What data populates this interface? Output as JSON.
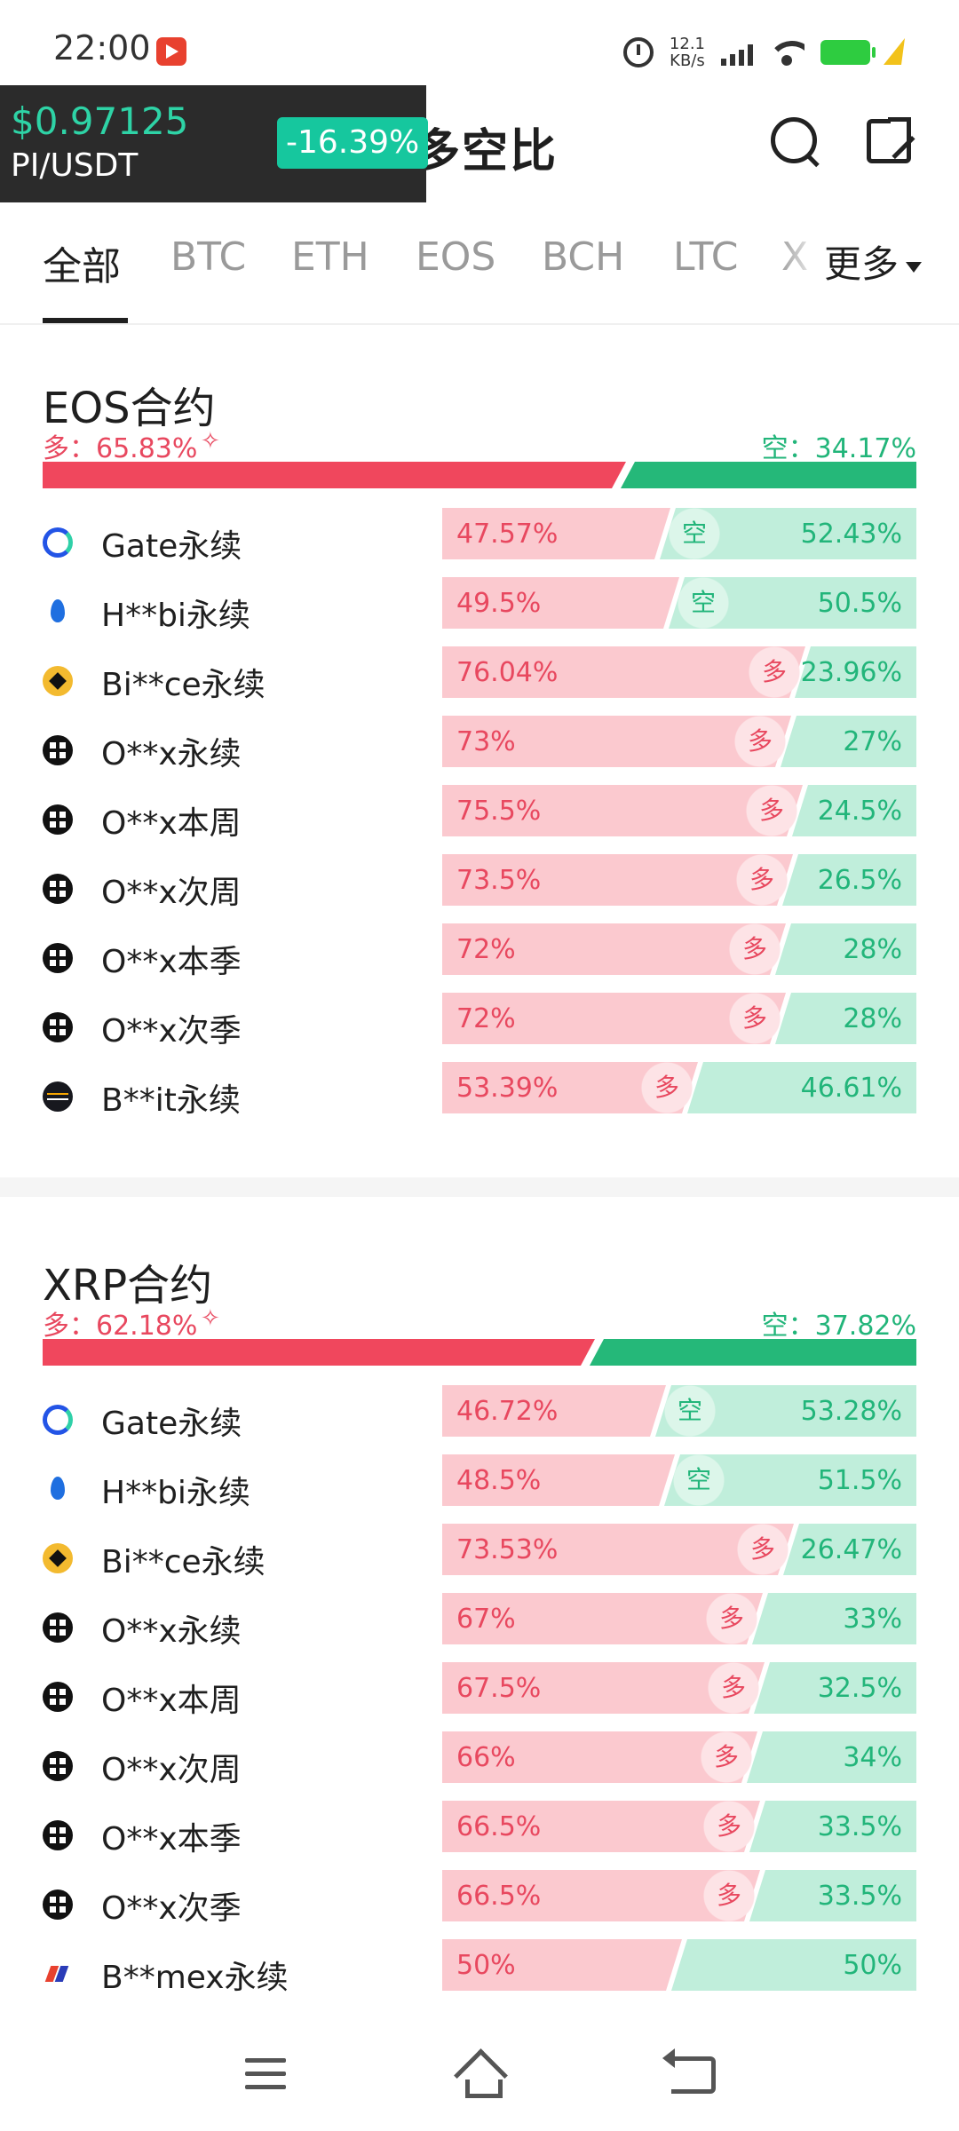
{
  "status_bar": {
    "time": "22:00",
    "net_speed_value": "12.1",
    "net_speed_unit": "KB/s"
  },
  "header": {
    "title": "多空比"
  },
  "ticker": {
    "price": "$0.97125",
    "pair": "PI/USDT",
    "change": "-16.39%"
  },
  "tabs": [
    "全部",
    "BTC",
    "ETH",
    "EOS",
    "BCH",
    "LTC"
  ],
  "tab_more_label": "更多",
  "tab_cut": "X",
  "icons": {
    "gate": "gate-icon",
    "huobi": "huobi-icon",
    "binance": "binance-icon",
    "okx": "okx-icon",
    "bybit": "bybit-icon",
    "bitmex": "bitmex-icon"
  },
  "colors": {
    "long": "#f0475d",
    "short": "#25b879",
    "long_light": "#fbc9cf",
    "short_light": "#c0eedb"
  },
  "sections": [
    {
      "title": "EOS合约",
      "long_label": "多：65.83%",
      "short_label": "空：34.17%",
      "long_pct": 65.83,
      "rows": [
        {
          "name": "Gate永续",
          "icon": "gate",
          "long": "47.57%",
          "short": "52.43%",
          "long_pct": 47.57,
          "tag": "空"
        },
        {
          "name": "H**bi永续",
          "icon": "huobi",
          "long": "49.5%",
          "short": "50.5%",
          "long_pct": 49.5,
          "tag": "空"
        },
        {
          "name": "Bi**ce永续",
          "icon": "binance",
          "long": "76.04%",
          "short": "23.96%",
          "long_pct": 76.04,
          "tag": "多"
        },
        {
          "name": "O**x永续",
          "icon": "okx",
          "long": "73%",
          "short": "27%",
          "long_pct": 73,
          "tag": "多"
        },
        {
          "name": "O**x本周",
          "icon": "okx",
          "long": "75.5%",
          "short": "24.5%",
          "long_pct": 75.5,
          "tag": "多"
        },
        {
          "name": "O**x次周",
          "icon": "okx",
          "long": "73.5%",
          "short": "26.5%",
          "long_pct": 73.5,
          "tag": "多"
        },
        {
          "name": "O**x本季",
          "icon": "okx",
          "long": "72%",
          "short": "28%",
          "long_pct": 72,
          "tag": "多"
        },
        {
          "name": "O**x次季",
          "icon": "okx",
          "long": "72%",
          "short": "28%",
          "long_pct": 72,
          "tag": "多"
        },
        {
          "name": "B**it永续",
          "icon": "bybit",
          "long": "53.39%",
          "short": "46.61%",
          "long_pct": 53.39,
          "tag": "多"
        }
      ]
    },
    {
      "title": "XRP合约",
      "long_label": "多：62.18%",
      "short_label": "空：37.82%",
      "long_pct": 62.18,
      "rows": [
        {
          "name": "Gate永续",
          "icon": "gate",
          "long": "46.72%",
          "short": "53.28%",
          "long_pct": 46.72,
          "tag": "空"
        },
        {
          "name": "H**bi永续",
          "icon": "huobi",
          "long": "48.5%",
          "short": "51.5%",
          "long_pct": 48.5,
          "tag": "空"
        },
        {
          "name": "Bi**ce永续",
          "icon": "binance",
          "long": "73.53%",
          "short": "26.47%",
          "long_pct": 73.53,
          "tag": "多"
        },
        {
          "name": "O**x永续",
          "icon": "okx",
          "long": "67%",
          "short": "33%",
          "long_pct": 67,
          "tag": "多"
        },
        {
          "name": "O**x本周",
          "icon": "okx",
          "long": "67.5%",
          "short": "32.5%",
          "long_pct": 67.5,
          "tag": "多"
        },
        {
          "name": "O**x次周",
          "icon": "okx",
          "long": "66%",
          "short": "34%",
          "long_pct": 66,
          "tag": "多"
        },
        {
          "name": "O**x本季",
          "icon": "okx",
          "long": "66.5%",
          "short": "33.5%",
          "long_pct": 66.5,
          "tag": "多"
        },
        {
          "name": "O**x次季",
          "icon": "okx",
          "long": "66.5%",
          "short": "33.5%",
          "long_pct": 66.5,
          "tag": "多"
        },
        {
          "name": "B**mex永续",
          "icon": "bitmex",
          "long": "50%",
          "short": "50%",
          "long_pct": 50,
          "tag": ""
        }
      ]
    }
  ]
}
